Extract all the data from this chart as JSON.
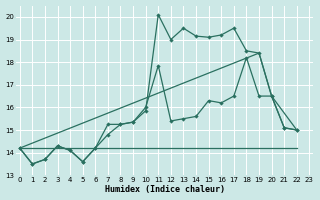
{
  "xlabel": "Humidex (Indice chaleur)",
  "bg_color": "#cce8e6",
  "grid_color": "#ffffff",
  "line_color": "#2a7060",
  "xlim": [
    -0.3,
    23.3
  ],
  "ylim": [
    13,
    20.5
  ],
  "yticks": [
    13,
    14,
    15,
    16,
    17,
    18,
    19,
    20
  ],
  "xticks": [
    0,
    1,
    2,
    3,
    4,
    5,
    6,
    7,
    8,
    9,
    10,
    11,
    12,
    13,
    14,
    15,
    16,
    17,
    18,
    19,
    20,
    21,
    22,
    23
  ],
  "line1_x": [
    0,
    1,
    2,
    3,
    4,
    5,
    6,
    7,
    8,
    9,
    10,
    11,
    12,
    13,
    14,
    15,
    16,
    17,
    18,
    19,
    20,
    21,
    22
  ],
  "line1_y": [
    14.2,
    13.5,
    13.7,
    14.3,
    14.1,
    13.6,
    14.2,
    15.25,
    15.25,
    15.35,
    15.85,
    20.1,
    19.0,
    19.5,
    19.15,
    19.1,
    19.2,
    19.5,
    18.5,
    18.4,
    16.5,
    15.1,
    15.0
  ],
  "line2_x": [
    0,
    1,
    2,
    3,
    4,
    5,
    6,
    7,
    8,
    9,
    10,
    11,
    12,
    13,
    14,
    15,
    16,
    17,
    18,
    19,
    20,
    21,
    22
  ],
  "line2_y": [
    14.2,
    13.5,
    13.7,
    14.3,
    14.1,
    13.6,
    14.2,
    14.8,
    15.25,
    15.35,
    16.0,
    17.85,
    15.4,
    15.5,
    15.6,
    16.3,
    16.2,
    16.5,
    18.2,
    16.5,
    16.5,
    15.1,
    15.0
  ],
  "line3_x": [
    0,
    19,
    20,
    22
  ],
  "line3_y": [
    14.2,
    18.4,
    16.5,
    15.0
  ],
  "line4_x": [
    0,
    19,
    22
  ],
  "line4_y": [
    14.2,
    14.2,
    14.2
  ]
}
